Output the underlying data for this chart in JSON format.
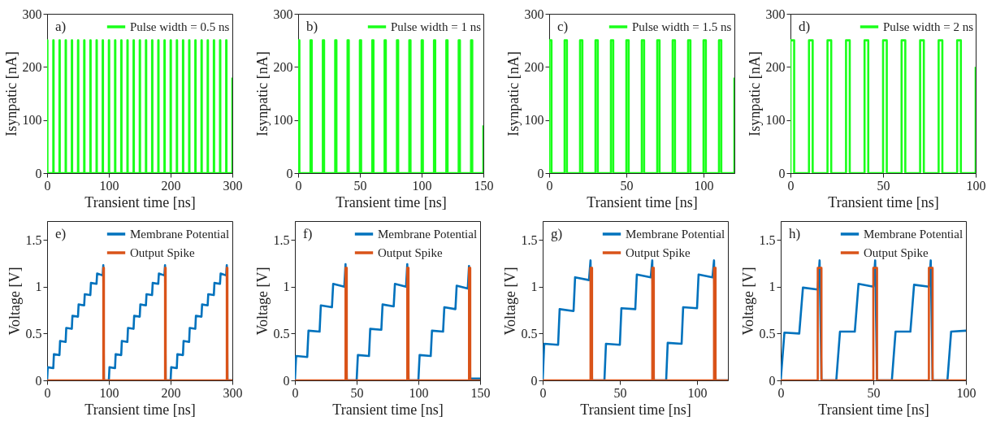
{
  "chart_data": [
    {
      "type": "line",
      "annotations": [
        "a)"
      ],
      "xlabel": "Transient time [ns]",
      "ylabel": "Isynpatic [nA]",
      "xlim": [
        0,
        300
      ],
      "xticks": [
        0,
        100,
        200,
        300
      ],
      "ylim": [
        0,
        300
      ],
      "yticks": [
        0,
        100,
        200,
        300
      ],
      "legend": "top right",
      "series": [
        {
          "name": "Pulse width = 0.5 ns",
          "color": "#1aff1a",
          "x": [
            0,
            0,
            0.5,
            0.5,
            10,
            10,
            10.5,
            10.5,
            20,
            20,
            20.5,
            20.5,
            30,
            30,
            30.5,
            30.5,
            40,
            40,
            40.5,
            40.5,
            50,
            50,
            50.5,
            50.5,
            60,
            60,
            60.5,
            60.5,
            70,
            70,
            70.5,
            70.5,
            80,
            80,
            80.5,
            80.5,
            90,
            90,
            90.5,
            90.5,
            100,
            100,
            100.5,
            100.5,
            110,
            110,
            110.5,
            110.5,
            120,
            120,
            120.5,
            120.5,
            130,
            130,
            130.5,
            130.5,
            140,
            140,
            140.5,
            140.5,
            150,
            150,
            150.5,
            150.5,
            160,
            160,
            160.5,
            160.5,
            170,
            170,
            170.5,
            170.5,
            180,
            180,
            180.5,
            180.5,
            190,
            190,
            190.5,
            190.5,
            200,
            200,
            200.5,
            200.5,
            210,
            210,
            210.5,
            210.5,
            220,
            220,
            220.5,
            220.5,
            230,
            230,
            230.5,
            230.5,
            240,
            240,
            240.5,
            240.5,
            250,
            250,
            250.5,
            250.5,
            260,
            260,
            260.5,
            260.5,
            270,
            270,
            270.5,
            270.5,
            280,
            280,
            280.5,
            280.5,
            290,
            290,
            290.5,
            290.5,
            300,
            300
          ],
          "values": [
            0,
            250,
            250,
            0,
            0,
            250,
            250,
            0,
            0,
            250,
            250,
            0,
            0,
            250,
            250,
            0,
            0,
            250,
            250,
            0,
            0,
            250,
            250,
            0,
            0,
            250,
            250,
            0,
            0,
            250,
            250,
            0,
            0,
            250,
            250,
            0,
            0,
            250,
            250,
            0,
            0,
            250,
            250,
            0,
            0,
            250,
            250,
            0,
            0,
            250,
            250,
            0,
            0,
            250,
            250,
            0,
            0,
            250,
            250,
            0,
            0,
            250,
            250,
            0,
            0,
            250,
            250,
            0,
            0,
            250,
            250,
            0,
            0,
            250,
            250,
            0,
            0,
            250,
            250,
            0,
            0,
            250,
            250,
            0,
            0,
            250,
            250,
            0,
            0,
            250,
            250,
            0,
            0,
            250,
            250,
            0,
            0,
            250,
            250,
            0,
            0,
            250,
            250,
            0,
            0,
            250,
            250,
            0,
            0,
            250,
            250,
            0,
            0,
            250,
            250,
            0,
            0,
            250,
            250,
            0,
            0,
            180
          ]
        }
      ]
    },
    {
      "type": "line",
      "annotations": [
        "b)"
      ],
      "xlabel": "Transient time [ns]",
      "ylabel": "Isynpatic [nA]",
      "xlim": [
        0,
        150
      ],
      "xticks": [
        0,
        50,
        100,
        150
      ],
      "ylim": [
        0,
        300
      ],
      "yticks": [
        0,
        100,
        200,
        300
      ],
      "legend": "top right",
      "series": [
        {
          "name": "Pulse width = 1 ns",
          "color": "#1aff1a",
          "x": [
            0,
            0,
            1,
            1,
            10,
            10,
            11,
            11,
            20,
            20,
            21,
            21,
            30,
            30,
            31,
            31,
            40,
            40,
            41,
            41,
            50,
            50,
            51,
            51,
            60,
            60,
            61,
            61,
            70,
            70,
            71,
            71,
            80,
            80,
            81,
            81,
            90,
            90,
            91,
            91,
            100,
            100,
            101,
            101,
            110,
            110,
            111,
            111,
            120,
            120,
            121,
            121,
            130,
            130,
            131,
            131,
            140,
            140,
            141,
            141,
            150,
            150
          ],
          "values": [
            0,
            250,
            250,
            0,
            0,
            250,
            250,
            0,
            0,
            250,
            250,
            0,
            0,
            250,
            250,
            0,
            0,
            250,
            250,
            0,
            0,
            250,
            250,
            0,
            0,
            250,
            250,
            0,
            0,
            250,
            250,
            0,
            0,
            250,
            250,
            0,
            0,
            250,
            250,
            0,
            0,
            250,
            250,
            0,
            0,
            250,
            250,
            0,
            0,
            250,
            250,
            0,
            0,
            250,
            250,
            0,
            0,
            250,
            250,
            0,
            0,
            90
          ]
        }
      ]
    },
    {
      "type": "line",
      "annotations": [
        "c)"
      ],
      "xlabel": "Transient time [ns]",
      "ylabel": "Isynpatic [nA]",
      "xlim": [
        0,
        120
      ],
      "xticks": [
        0,
        50,
        100
      ],
      "ylim": [
        0,
        300
      ],
      "yticks": [
        0,
        100,
        200,
        300
      ],
      "legend": "top right",
      "series": [
        {
          "name": "Pulse width = 1.5 ns",
          "color": "#1aff1a",
          "x": [
            0,
            0,
            1.5,
            1.5,
            10,
            10,
            11.5,
            11.5,
            20,
            20,
            21.5,
            21.5,
            30,
            30,
            31.5,
            31.5,
            40,
            40,
            41.5,
            41.5,
            50,
            50,
            51.5,
            51.5,
            60,
            60,
            61.5,
            61.5,
            70,
            70,
            71.5,
            71.5,
            80,
            80,
            81.5,
            81.5,
            90,
            90,
            91.5,
            91.5,
            100,
            100,
            101.5,
            101.5,
            110,
            110,
            111.5,
            111.5,
            120,
            120
          ],
          "values": [
            0,
            250,
            250,
            0,
            0,
            250,
            250,
            0,
            0,
            250,
            250,
            0,
            0,
            250,
            250,
            0,
            0,
            250,
            250,
            0,
            0,
            250,
            250,
            0,
            0,
            250,
            250,
            0,
            0,
            250,
            250,
            0,
            0,
            250,
            250,
            0,
            0,
            250,
            250,
            0,
            0,
            250,
            250,
            0,
            0,
            250,
            250,
            0,
            0,
            180
          ]
        }
      ]
    },
    {
      "type": "line",
      "annotations": [
        "d)"
      ],
      "xlabel": "Transient time [ns]",
      "ylabel": "Isynpatic [nA]",
      "xlim": [
        0,
        100
      ],
      "xticks": [
        0,
        50,
        100
      ],
      "ylim": [
        0,
        300
      ],
      "yticks": [
        0,
        100,
        200,
        300
      ],
      "legend": "top right",
      "series": [
        {
          "name": "Pulse width = 2 ns",
          "color": "#1aff1a",
          "x": [
            0,
            0,
            2,
            2,
            10,
            10,
            12,
            12,
            20,
            20,
            22,
            22,
            30,
            30,
            32,
            32,
            40,
            40,
            42,
            42,
            50,
            50,
            52,
            52,
            60,
            60,
            62,
            62,
            70,
            70,
            72,
            72,
            80,
            80,
            82,
            82,
            90,
            90,
            92,
            92,
            100,
            100
          ],
          "values": [
            0,
            250,
            250,
            0,
            0,
            250,
            250,
            0,
            0,
            250,
            250,
            0,
            0,
            250,
            250,
            0,
            0,
            250,
            250,
            0,
            0,
            250,
            250,
            0,
            0,
            250,
            250,
            0,
            0,
            250,
            250,
            0,
            0,
            250,
            250,
            0,
            0,
            250,
            250,
            0,
            0,
            200
          ]
        }
      ]
    },
    {
      "type": "line",
      "annotations": [
        "e)"
      ],
      "xlabel": "Transient time [ns]",
      "ylabel": "Voltage [V]",
      "xlim": [
        0,
        300
      ],
      "xticks": [
        0,
        100,
        200,
        300
      ],
      "ylim": [
        0,
        1.7
      ],
      "yticks": [
        0,
        0.5,
        1,
        1.5
      ],
      "legend": "top right",
      "series": [
        {
          "name": "Membrane Potential",
          "color": "#0072bd",
          "x": [
            0,
            1,
            10,
            11,
            20,
            21,
            30,
            31,
            40,
            41,
            50,
            51,
            60,
            61,
            70,
            71,
            80,
            81,
            90,
            91,
            92,
            100,
            101,
            110,
            111,
            120,
            121,
            130,
            131,
            140,
            141,
            150,
            151,
            160,
            161,
            170,
            171,
            180,
            181,
            190,
            191,
            192,
            200,
            201,
            210,
            211,
            220,
            221,
            230,
            231,
            240,
            241,
            250,
            251,
            260,
            261,
            270,
            271,
            280,
            281,
            290,
            291,
            292,
            300
          ],
          "values": [
            0,
            0.14,
            0.13,
            0.28,
            0.27,
            0.42,
            0.41,
            0.56,
            0.55,
            0.69,
            0.68,
            0.81,
            0.8,
            0.92,
            0.91,
            1.04,
            1.03,
            1.14,
            1.12,
            1.23,
            0,
            0,
            0.14,
            0.13,
            0.28,
            0.27,
            0.42,
            0.41,
            0.56,
            0.55,
            0.69,
            0.68,
            0.81,
            0.8,
            0.92,
            0.91,
            1.04,
            1.03,
            1.14,
            1.12,
            1.23,
            0,
            0,
            0.14,
            0.13,
            0.28,
            0.27,
            0.42,
            0.41,
            0.56,
            0.55,
            0.69,
            0.68,
            0.81,
            0.8,
            0.92,
            0.91,
            1.04,
            1.03,
            1.14,
            1.12,
            1.23,
            0,
            0
          ]
        },
        {
          "name": "Output Spike",
          "color": "#d95319",
          "x": [
            0,
            91,
            91,
            92,
            92,
            191,
            191,
            192,
            192,
            291,
            291,
            292,
            292,
            300
          ],
          "values": [
            0,
            0,
            1.2,
            1.2,
            0,
            0,
            1.2,
            1.2,
            0,
            0,
            1.2,
            1.2,
            0,
            0
          ]
        }
      ]
    },
    {
      "type": "line",
      "annotations": [
        "f)"
      ],
      "xlabel": "Transient time [ns]",
      "ylabel": "Voltage [V]",
      "xlim": [
        0,
        150
      ],
      "xticks": [
        0,
        50,
        100,
        150
      ],
      "ylim": [
        0,
        1.7
      ],
      "yticks": [
        0,
        0.5,
        1,
        1.5
      ],
      "legend": "top right",
      "series": [
        {
          "name": "Membrane Potential",
          "color": "#0072bd",
          "x": [
            0,
            1,
            10,
            11,
            20,
            21,
            30,
            31,
            40,
            41,
            42,
            50,
            51,
            60,
            61,
            70,
            71,
            80,
            81,
            90,
            91,
            92,
            100,
            101,
            110,
            111,
            120,
            121,
            130,
            131,
            140,
            141,
            142,
            150
          ],
          "values": [
            0,
            0.26,
            0.25,
            0.53,
            0.52,
            0.8,
            0.78,
            1.03,
            1.0,
            1.24,
            0,
            0,
            0.27,
            0.26,
            0.55,
            0.54,
            0.81,
            0.79,
            1.03,
            1.0,
            1.24,
            0,
            0,
            0.27,
            0.26,
            0.53,
            0.52,
            0.78,
            0.76,
            1.01,
            0.98,
            1.22,
            0.02,
            0.02
          ]
        },
        {
          "name": "Output Spike",
          "color": "#d95319",
          "x": [
            0,
            41,
            41,
            42,
            42,
            91,
            91,
            92,
            92,
            141,
            141,
            142,
            142,
            150
          ],
          "values": [
            0,
            0,
            1.2,
            1.2,
            0,
            0,
            1.2,
            1.2,
            0,
            0,
            1.2,
            1.2,
            0,
            0
          ]
        }
      ]
    },
    {
      "type": "line",
      "annotations": [
        "g)"
      ],
      "xlabel": "Transient time [ns]",
      "ylabel": "Voltage [V]",
      "xlim": [
        0,
        120
      ],
      "xticks": [
        0,
        50,
        100
      ],
      "ylim": [
        0,
        1.7
      ],
      "yticks": [
        0,
        0.5,
        1,
        1.5
      ],
      "legend": "top right",
      "series": [
        {
          "name": "Membrane Potential",
          "color": "#0072bd",
          "x": [
            0,
            1,
            10,
            11,
            20,
            21,
            30,
            31,
            32,
            40,
            41,
            50,
            51,
            60,
            61,
            70,
            71,
            72,
            80,
            81,
            90,
            91,
            100,
            101,
            110,
            111,
            112,
            120
          ],
          "values": [
            0,
            0.39,
            0.38,
            0.76,
            0.74,
            1.1,
            1.07,
            1.28,
            0,
            0,
            0.39,
            0.38,
            0.77,
            0.76,
            1.13,
            1.1,
            1.28,
            0,
            0,
            0.4,
            0.39,
            0.78,
            0.77,
            1.13,
            1.1,
            1.28,
            0,
            0
          ]
        },
        {
          "name": "Output Spike",
          "color": "#d95319",
          "x": [
            0,
            31,
            31,
            32,
            32,
            71,
            71,
            72,
            72,
            111,
            111,
            112,
            112,
            120
          ],
          "values": [
            0,
            0,
            1.2,
            1.2,
            0,
            0,
            1.2,
            1.2,
            0,
            0,
            1.2,
            1.2,
            0,
            0
          ]
        }
      ]
    },
    {
      "type": "line",
      "annotations": [
        "h)"
      ],
      "xlabel": "Transient time [ns]",
      "ylabel": "Voltage [V]",
      "xlim": [
        0,
        100
      ],
      "xticks": [
        0,
        50,
        100
      ],
      "ylim": [
        0,
        1.7
      ],
      "yticks": [
        0,
        0.5,
        1,
        1.5
      ],
      "legend": "top right",
      "series": [
        {
          "name": "Membrane Potential",
          "color": "#0072bd",
          "x": [
            0,
            2,
            10,
            12,
            20,
            21,
            22,
            30,
            32,
            40,
            42,
            50,
            51,
            52,
            60,
            62,
            70,
            72,
            80,
            81,
            82,
            90,
            92,
            100
          ],
          "values": [
            0,
            0.51,
            0.5,
            0.99,
            0.97,
            1.28,
            0,
            0,
            0.52,
            0.52,
            1.03,
            1.0,
            1.28,
            0,
            0,
            0.52,
            0.52,
            1.02,
            1.0,
            1.28,
            0,
            0,
            0.52,
            0.53
          ]
        },
        {
          "name": "Output Spike",
          "color": "#d95319",
          "x": [
            0,
            20,
            20,
            22,
            22,
            50,
            50,
            52,
            52,
            80,
            80,
            82,
            82,
            100
          ],
          "values": [
            0,
            0,
            1.2,
            1.2,
            0,
            0,
            1.2,
            1.2,
            0,
            0,
            1.2,
            1.2,
            0,
            0
          ]
        }
      ]
    }
  ]
}
